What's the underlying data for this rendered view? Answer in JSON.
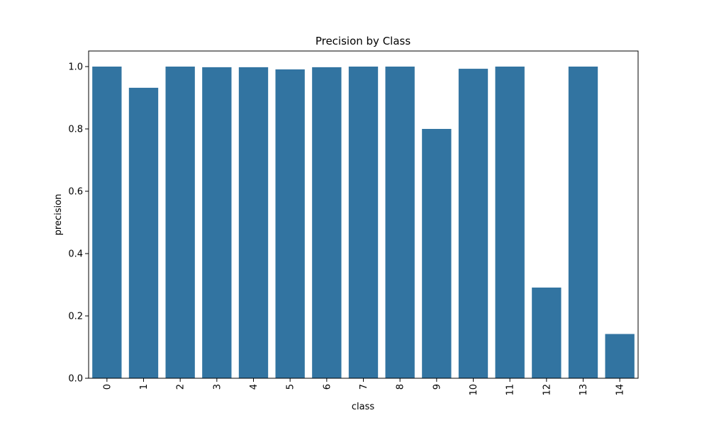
{
  "chart_data": {
    "type": "bar",
    "title": "Precision by Class",
    "xlabel": "class",
    "ylabel": "precision",
    "categories": [
      "0",
      "1",
      "2",
      "3",
      "4",
      "5",
      "6",
      "7",
      "8",
      "9",
      "10",
      "11",
      "12",
      "13",
      "14"
    ],
    "values": [
      1.0,
      0.932,
      1.0,
      0.998,
      0.998,
      0.991,
      0.998,
      1.0,
      1.0,
      0.8,
      0.993,
      1.0,
      0.291,
      1.0,
      0.142
    ],
    "ylim": [
      0,
      1.05
    ],
    "yticks": [
      "0.0",
      "0.2",
      "0.4",
      "0.6",
      "0.8",
      "1.0"
    ],
    "xtick_rotation": "vertical",
    "grid": false,
    "legend": "none",
    "bar_color": "#3274a1"
  }
}
